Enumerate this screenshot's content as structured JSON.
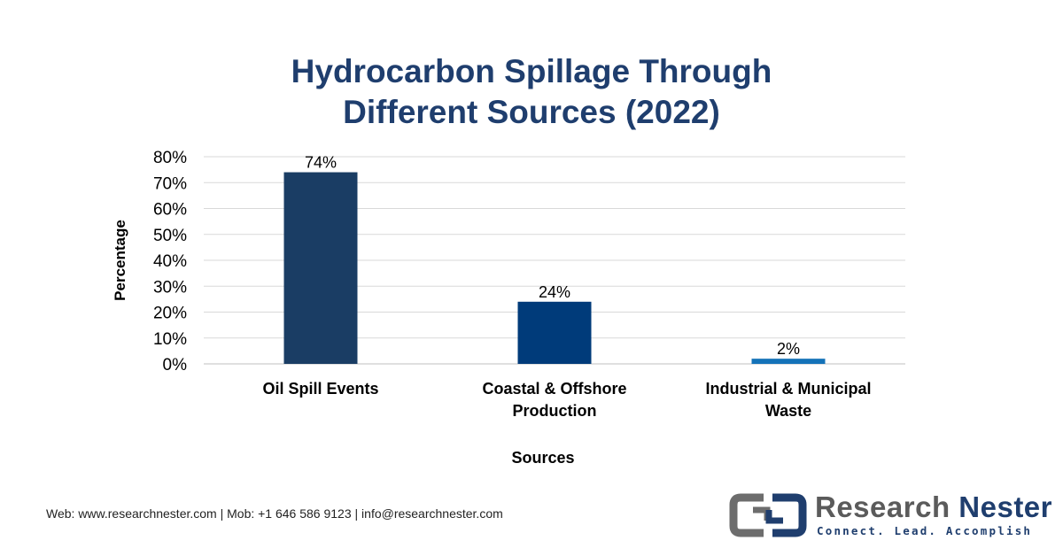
{
  "chart_data": {
    "type": "bar",
    "title_line1": "Hydrocarbon Spillage Through",
    "title_line2": "Different Sources (2022)",
    "xlabel": "Sources",
    "ylabel": "Percentage",
    "categories": [
      [
        "Oil Spill Events"
      ],
      [
        "Coastal & Offshore",
        "Production"
      ],
      [
        "Industrial & Municipal",
        "Waste"
      ]
    ],
    "values": [
      74,
      24,
      2
    ],
    "data_labels": [
      "74%",
      "24%",
      "2%"
    ],
    "bar_colors": [
      "#1a3d64",
      "#003b7a",
      "#1472b8"
    ],
    "ylim": [
      0,
      80
    ],
    "y_ticks": [
      0,
      10,
      20,
      30,
      40,
      50,
      60,
      70,
      80
    ],
    "y_tick_labels": [
      "0%",
      "10%",
      "20%",
      "30%",
      "40%",
      "50%",
      "60%",
      "70%",
      "80%"
    ],
    "grid": true,
    "legend": "none"
  },
  "footer": {
    "contact": "Web: www.researchnester.com | Mob: +1 646 586 9123 | info@researchnester.com"
  },
  "logo": {
    "name_part1": "Research",
    "name_part2": "Nester",
    "tagline": "Connect. Lead. Accomplish",
    "icon": "research-nester-logo-icon"
  },
  "colors": {
    "title": "#1f3e6e",
    "grid": "#d9d9d9"
  }
}
